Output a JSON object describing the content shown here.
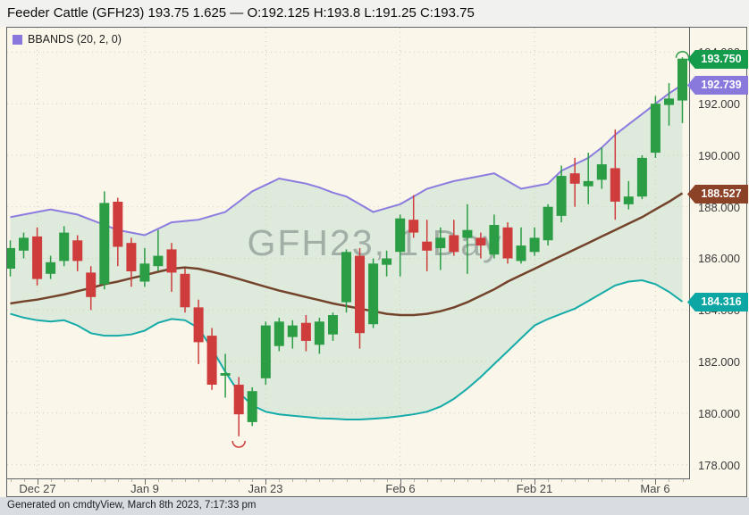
{
  "header": {
    "instrument": "Feeder Cattle (GFH23)",
    "last": "193.75",
    "change": "1.625",
    "open": "192.125",
    "high": "193.8",
    "low": "191.25",
    "close": "193.75",
    "full": "Feeder Cattle (GFH23) 193.75 1.625 — O:192.125 H:193.8 L:191.25 C:193.75"
  },
  "legend": {
    "label": "BBANDS (20, 2, 0)"
  },
  "watermark": "GFH23, 1 Day",
  "footer": {
    "text": "Generated on cmdtyView, March 8th 2023, 7:17:33 pm"
  },
  "colors": {
    "background": "#FAF6EA",
    "header_bg": "#F1F1EF",
    "footer_bg": "#D9DCE0",
    "border": "#5F6266",
    "up": "#2A9D45",
    "down": "#CE3C3C",
    "band_upper": "#8C7CDF",
    "band_middle": "#74432B",
    "band_lower": "#14ABA8",
    "band_fill": "rgba(23,150,125,0.12)",
    "grid": "#D6CCBD",
    "legend_swatch": "#8877DD",
    "tag_last": "#149B4C",
    "tag_upper": "#8979DC",
    "tag_middle": "#8B4227",
    "tag_lower": "#0CA7A4",
    "watermark": "#7D7D7D"
  },
  "axis_tags": [
    {
      "name": "last-price-tag",
      "label": "193.750",
      "price": 193.75,
      "color_key": "tag_last"
    },
    {
      "name": "upper-band-tag",
      "label": "192.739",
      "price": 192.739,
      "color_key": "tag_upper"
    },
    {
      "name": "middle-band-tag",
      "label": "188.527",
      "price": 188.527,
      "color_key": "tag_middle"
    },
    {
      "name": "lower-band-tag",
      "label": "184.316",
      "price": 184.316,
      "color_key": "tag_lower"
    }
  ],
  "chart_data": {
    "type": "candlestick",
    "symbol": "GFH23",
    "interval": "1 Day",
    "title": "GFH23, 1 Day",
    "y_min": 177.5,
    "y_max": 194.95,
    "y_ticks": [
      178,
      180,
      182,
      184,
      186,
      188,
      190,
      192,
      194
    ],
    "x_step": 15.04,
    "x_ticks": [
      {
        "index": 2,
        "label": "Dec 27"
      },
      {
        "index": 10,
        "label": "Jan 9"
      },
      {
        "index": 19,
        "label": "Jan 23"
      },
      {
        "index": 29,
        "label": "Feb 6"
      },
      {
        "index": 39,
        "label": "Feb 21"
      },
      {
        "index": 48,
        "label": "Mar 6"
      }
    ],
    "columns": [
      "date",
      "open",
      "high",
      "low",
      "close"
    ],
    "candles": [
      [
        "Dec 22",
        185.6,
        186.7,
        185.3,
        186.4
      ],
      [
        "Dec 23",
        186.3,
        187.0,
        186.0,
        186.8
      ],
      [
        "Dec 27",
        186.85,
        187.2,
        184.95,
        185.2
      ],
      [
        "Dec 28",
        185.4,
        186.1,
        185.2,
        185.85
      ],
      [
        "Dec 29",
        185.9,
        187.25,
        185.7,
        187.0
      ],
      [
        "Dec 30",
        186.7,
        186.9,
        185.5,
        185.9
      ],
      [
        "Jan 3",
        185.45,
        185.7,
        184.0,
        184.5
      ],
      [
        "Jan 4",
        185.0,
        188.6,
        184.8,
        188.15
      ],
      [
        "Jan 5",
        188.2,
        188.35,
        185.7,
        186.45
      ],
      [
        "Jan 6",
        186.6,
        186.8,
        184.9,
        185.5
      ],
      [
        "Jan 9",
        185.1,
        186.4,
        184.9,
        185.8
      ],
      [
        "Jan 10",
        185.7,
        187.1,
        185.5,
        186.1
      ],
      [
        "Jan 11",
        186.35,
        186.6,
        184.7,
        185.45
      ],
      [
        "Jan 12",
        185.4,
        185.6,
        183.9,
        184.1
      ],
      [
        "Jan 13",
        184.1,
        184.4,
        181.9,
        182.75
      ],
      [
        "Jan 17",
        183.0,
        183.3,
        180.9,
        181.1
      ],
      [
        "Jan 18",
        181.45,
        182.3,
        180.6,
        181.55
      ],
      [
        "Jan 19",
        181.1,
        181.4,
        179.1,
        179.95
      ],
      [
        "Jan 20",
        179.65,
        181.0,
        179.5,
        180.85
      ],
      [
        "Jan 23",
        181.35,
        183.55,
        181.1,
        183.4
      ],
      [
        "Jan 24",
        182.6,
        183.7,
        182.4,
        183.55
      ],
      [
        "Jan 25",
        182.95,
        183.6,
        182.5,
        183.4
      ],
      [
        "Jan 26",
        183.5,
        183.8,
        182.4,
        182.8
      ],
      [
        "Jan 27",
        182.65,
        183.7,
        182.3,
        183.55
      ],
      [
        "Jan 30",
        183.05,
        183.9,
        182.8,
        183.8
      ],
      [
        "Jan 31",
        184.3,
        186.35,
        183.9,
        186.25
      ],
      [
        "Feb 1",
        186.1,
        186.4,
        182.5,
        183.1
      ],
      [
        "Feb 2",
        183.45,
        186.0,
        183.3,
        185.8
      ],
      [
        "Feb 3",
        185.75,
        186.3,
        185.3,
        186.0
      ],
      [
        "Feb 6",
        186.25,
        187.7,
        185.3,
        187.55
      ],
      [
        "Feb 7",
        187.5,
        188.45,
        186.8,
        187.0
      ],
      [
        "Feb 8",
        186.65,
        187.5,
        185.5,
        186.3
      ],
      [
        "Feb 9",
        186.4,
        187.2,
        185.55,
        186.8
      ],
      [
        "Feb 10",
        186.9,
        187.5,
        186.1,
        186.25
      ],
      [
        "Feb 13",
        186.8,
        188.1,
        185.4,
        187.1
      ],
      [
        "Feb 14",
        186.8,
        187.0,
        186.0,
        186.5
      ],
      [
        "Feb 15",
        186.15,
        187.7,
        186.0,
        187.3
      ],
      [
        "Feb 16",
        187.2,
        187.4,
        185.8,
        186.0
      ],
      [
        "Feb 17",
        185.9,
        187.2,
        185.8,
        186.5
      ],
      [
        "Feb 21",
        186.25,
        187.2,
        186.1,
        186.8
      ],
      [
        "Feb 22",
        186.7,
        188.1,
        186.5,
        188.0
      ],
      [
        "Feb 23",
        187.65,
        189.6,
        187.4,
        189.2
      ],
      [
        "Feb 24",
        189.3,
        189.9,
        188.0,
        188.9
      ],
      [
        "Feb 27",
        188.8,
        190.1,
        188.1,
        189.0
      ],
      [
        "Feb 28",
        189.05,
        190.3,
        188.7,
        189.65
      ],
      [
        "Mar 1",
        189.5,
        191.0,
        187.5,
        188.2
      ],
      [
        "Mar 2",
        188.1,
        189.0,
        187.9,
        188.4
      ],
      [
        "Mar 3",
        188.4,
        190.0,
        188.3,
        189.9
      ],
      [
        "Mar 6",
        190.1,
        192.3,
        189.9,
        192.0
      ],
      [
        "Mar 7",
        191.95,
        192.8,
        191.15,
        192.2
      ],
      [
        "Mar 8",
        192.125,
        193.8,
        191.25,
        193.75
      ]
    ],
    "bbands": {
      "period": 20,
      "stddev": 2,
      "shift": 0,
      "upper": [
        187.6,
        187.7,
        187.8,
        187.9,
        187.8,
        187.7,
        187.5,
        187.3,
        187.1,
        187.0,
        186.9,
        187.15,
        187.4,
        187.45,
        187.5,
        187.65,
        187.8,
        188.2,
        188.6,
        188.85,
        189.1,
        189.0,
        188.9,
        188.75,
        188.55,
        188.4,
        188.1,
        187.8,
        187.95,
        188.1,
        188.4,
        188.7,
        188.85,
        189.0,
        189.1,
        189.2,
        189.3,
        189.0,
        188.7,
        188.8,
        188.9,
        189.4,
        189.65,
        189.9,
        190.3,
        190.8,
        191.2,
        191.6,
        192.0,
        192.4,
        192.74
      ],
      "middle": [
        184.25,
        184.33,
        184.4,
        184.5,
        184.6,
        184.73,
        184.85,
        185.0,
        185.1,
        185.23,
        185.35,
        185.48,
        185.6,
        185.65,
        185.6,
        185.48,
        185.35,
        185.2,
        185.05,
        184.9,
        184.75,
        184.63,
        184.5,
        184.38,
        184.25,
        184.15,
        184.05,
        183.95,
        183.85,
        183.8,
        183.8,
        183.85,
        183.95,
        184.1,
        184.3,
        184.55,
        184.8,
        185.1,
        185.35,
        185.6,
        185.85,
        186.1,
        186.35,
        186.6,
        186.85,
        187.1,
        187.35,
        187.6,
        187.9,
        188.2,
        188.53
      ],
      "lower": [
        183.85,
        183.7,
        183.6,
        183.55,
        183.6,
        183.4,
        183.1,
        183.0,
        183.0,
        183.05,
        183.2,
        183.5,
        183.65,
        183.6,
        183.3,
        182.5,
        181.6,
        180.8,
        180.3,
        180.05,
        179.95,
        179.9,
        179.85,
        179.8,
        179.78,
        179.75,
        179.75,
        179.78,
        179.82,
        179.88,
        179.95,
        180.05,
        180.25,
        180.55,
        180.95,
        181.4,
        181.9,
        182.4,
        182.9,
        183.4,
        183.65,
        183.85,
        184.05,
        184.35,
        184.65,
        184.95,
        185.1,
        185.15,
        185.0,
        184.7,
        184.32
      ]
    },
    "markers": [
      {
        "type": "swing-low-arc",
        "index": 17,
        "price": 178.92
      },
      {
        "type": "swing-high-arc",
        "index": 50,
        "price": 193.78
      }
    ]
  }
}
